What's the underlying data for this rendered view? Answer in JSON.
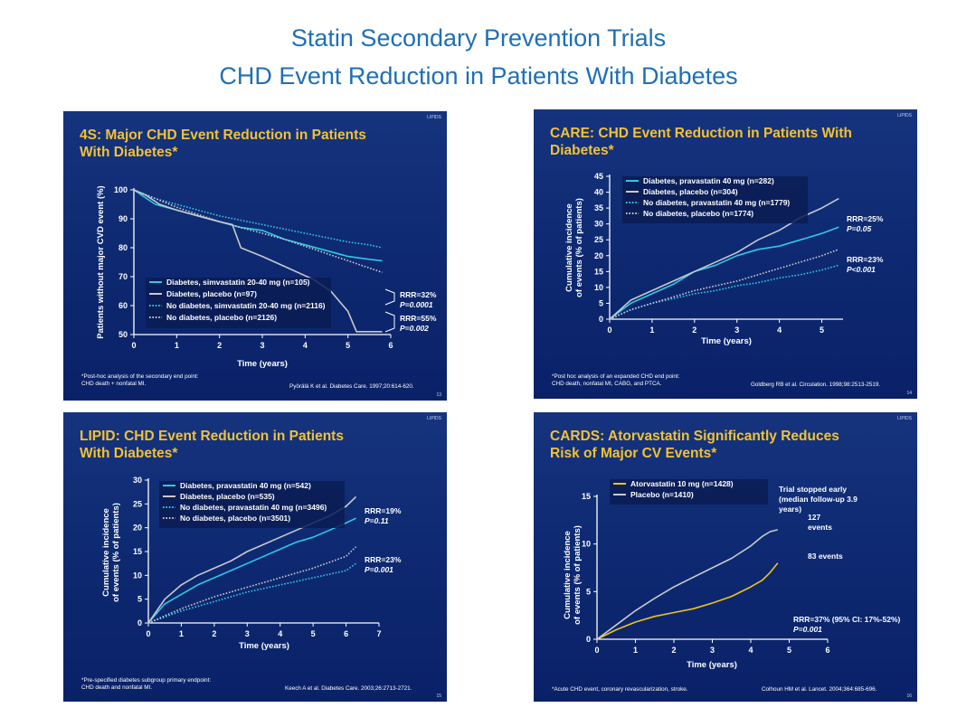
{
  "title_line1": "Statin Secondary Prevention Trials",
  "title_line2": "CHD Event Reduction in Patients With Diabetes",
  "colors": {
    "cyan": "#2ec9e6",
    "gray": "#c9c9c9",
    "yellow": "#f0c419",
    "panel_title": "#f1c232"
  },
  "chart_data": [
    {
      "type": "line",
      "title": "4S: Major CHD Event Reduction in Patients With Diabetes*",
      "xlabel": "Time (years)",
      "ylabel": "Patients without major CVD event (%)",
      "xlim": [
        0,
        6
      ],
      "ylim": [
        50,
        100
      ],
      "xticks": [
        0,
        1,
        2,
        3,
        4,
        5,
        6
      ],
      "yticks": [
        50,
        60,
        70,
        80,
        90,
        100
      ],
      "corner_label": "LIPIDS",
      "series": [
        {
          "name": "Diabetes, simvastatin 20-40 mg (n=105)",
          "color": "#2ec9e6",
          "dash": "solid",
          "x": [
            0,
            0.2,
            0.5,
            1.0,
            1.5,
            2.0,
            2.5,
            3.0,
            3.5,
            4.0,
            4.5,
            5.0,
            5.5,
            5.8
          ],
          "y": [
            100,
            98,
            95,
            93,
            91,
            89,
            87,
            86,
            83,
            81,
            79,
            77,
            76,
            75.5
          ]
        },
        {
          "name": "Diabetes, placebo (n=97)",
          "color": "#c9c9c9",
          "dash": "solid",
          "x": [
            0,
            0.3,
            0.6,
            1.0,
            1.5,
            2.0,
            2.3,
            2.5,
            3.0,
            3.3,
            3.6,
            3.9,
            4.2,
            4.6,
            5.0,
            5.2,
            5.5,
            5.8
          ],
          "y": [
            100,
            98,
            95,
            93,
            91,
            89,
            88,
            80,
            77,
            75,
            73,
            71,
            69,
            65,
            58,
            51,
            51,
            51
          ]
        },
        {
          "name": "No diabetes, simvastatin 20-40 mg (n=2116)",
          "color": "#2ec9e6",
          "dash": "dot",
          "x": [
            0,
            0.5,
            1.0,
            1.5,
            2.0,
            2.5,
            3.0,
            3.5,
            4.0,
            4.5,
            5.0,
            5.5,
            5.8
          ],
          "y": [
            100,
            97,
            95,
            93,
            91,
            89.5,
            88,
            86.5,
            85,
            83.5,
            82,
            81,
            80
          ]
        },
        {
          "name": "No diabetes, placebo (n=2126)",
          "color": "#c9c9c9",
          "dash": "dot",
          "x": [
            0,
            0.5,
            1.0,
            1.5,
            2.0,
            2.5,
            3.0,
            3.5,
            4.0,
            4.5,
            5.0,
            5.5,
            5.8
          ],
          "y": [
            100,
            97,
            94,
            91.5,
            89,
            87,
            85,
            83,
            80.5,
            78,
            75.5,
            73,
            71.5
          ]
        }
      ],
      "annotations": [
        {
          "lines": [
            "RRR=32%",
            "P=0.0001"
          ]
        },
        {
          "lines": [
            "RRR=55%",
            "P=0.002"
          ]
        }
      ],
      "footnote": [
        "*Post-hoc analysis of the secondary end point:",
        "CHD death + nonfatal MI."
      ],
      "reference": "Pyörälä K et al. Diabetes Care. 1997;20:614-620.",
      "page": "13"
    },
    {
      "type": "line",
      "title": "CARE: CHD Event Reduction in Patients With Diabetes*",
      "xlabel": "Time (years)",
      "ylabel": "Cumulative incidence of events (% of patients)",
      "xlim": [
        0,
        5.5
      ],
      "ylim": [
        0,
        45
      ],
      "xticks": [
        0,
        1,
        2,
        3,
        4,
        5
      ],
      "yticks": [
        0,
        5,
        10,
        15,
        20,
        25,
        30,
        35,
        40,
        45
      ],
      "corner_label": "LIPIDS",
      "series": [
        {
          "name": "Diabetes, pravastatin 40 mg (n=282)",
          "color": "#2ec9e6",
          "dash": "solid",
          "x": [
            0,
            0.5,
            1.0,
            1.5,
            2.0,
            2.5,
            3.0,
            3.5,
            4.0,
            4.5,
            5.0,
            5.4
          ],
          "y": [
            0,
            5,
            8,
            11,
            15,
            17,
            20,
            22,
            23,
            25,
            27,
            29
          ]
        },
        {
          "name": "Diabetes, placebo (n=304)",
          "color": "#c9c9c9",
          "dash": "solid",
          "x": [
            0,
            0.5,
            1.0,
            1.5,
            2.0,
            2.5,
            3.0,
            3.5,
            4.0,
            4.5,
            5.0,
            5.4
          ],
          "y": [
            0,
            6,
            9,
            12,
            15,
            18,
            21,
            25,
            28,
            32,
            35,
            38
          ]
        },
        {
          "name": "No diabetes, pravastatin 40 mg (n=1779)",
          "color": "#2ec9e6",
          "dash": "dot",
          "x": [
            0,
            0.5,
            1.0,
            1.5,
            2.0,
            2.5,
            3.0,
            3.5,
            4.0,
            4.5,
            5.0,
            5.4
          ],
          "y": [
            0,
            3,
            5,
            6.5,
            8,
            9,
            10.5,
            11.5,
            13,
            14,
            15.5,
            17
          ]
        },
        {
          "name": "No diabetes, placebo (n=1774)",
          "color": "#c9c9c9",
          "dash": "dot",
          "x": [
            0,
            0.5,
            1.0,
            1.5,
            2.0,
            2.5,
            3.0,
            3.5,
            4.0,
            4.5,
            5.0,
            5.4
          ],
          "y": [
            0,
            3,
            5,
            7,
            9,
            10.5,
            12,
            14,
            16,
            18,
            20,
            22
          ]
        }
      ],
      "annotations": [
        {
          "lines": [
            "RRR=25%",
            "P=0.05"
          ]
        },
        {
          "lines": [
            "RRR=23%",
            "P<0.001"
          ]
        }
      ],
      "footnote": [
        "*Post hoc analysis of an expanded CHD end point:",
        "CHD death, nonfatal MI, CABG, and PTCA."
      ],
      "reference": "Goldberg RB et al. Circulation. 1998;98:2513-2519.",
      "page": "14"
    },
    {
      "type": "line",
      "title": "LIPID: CHD Event Reduction in Patients With Diabetes*",
      "xlabel": "Time (years)",
      "ylabel": "Cumulative incidence of events (% of patients)",
      "xlim": [
        0,
        7
      ],
      "ylim": [
        0,
        30
      ],
      "xticks": [
        0,
        1,
        2,
        3,
        4,
        5,
        6,
        7
      ],
      "yticks": [
        0,
        5,
        10,
        15,
        20,
        25,
        30
      ],
      "corner_label": "LIPIDS",
      "series": [
        {
          "name": "Diabetes, pravastatin 40 mg (n=542)",
          "color": "#2ec9e6",
          "dash": "solid",
          "x": [
            0,
            0.5,
            1.0,
            1.5,
            2.0,
            2.5,
            3.0,
            3.5,
            4.0,
            4.5,
            5.0,
            5.5,
            6.0,
            6.3
          ],
          "y": [
            0,
            4,
            6,
            8,
            9.5,
            11,
            12.5,
            14,
            15.5,
            17,
            18,
            19.5,
            21,
            22
          ]
        },
        {
          "name": "Diabetes, placebo (n=535)",
          "color": "#c9c9c9",
          "dash": "solid",
          "x": [
            0,
            0.5,
            1.0,
            1.5,
            2.0,
            2.5,
            3.0,
            3.5,
            4.0,
            4.5,
            5.0,
            5.5,
            6.0,
            6.3
          ],
          "y": [
            0,
            5,
            8,
            10,
            11.5,
            13,
            15,
            16.5,
            18,
            19.5,
            21,
            22.5,
            24.5,
            26.5
          ]
        },
        {
          "name": "No diabetes, pravastatin 40 mg (n=3496)",
          "color": "#2ec9e6",
          "dash": "dot",
          "x": [
            0,
            1,
            2,
            3,
            4,
            5,
            6,
            6.3
          ],
          "y": [
            0,
            2.5,
            4.5,
            6.5,
            8,
            9.5,
            11,
            12.5
          ]
        },
        {
          "name": "No diabetes, placebo (n=3501)",
          "color": "#c9c9c9",
          "dash": "dot",
          "x": [
            0,
            1,
            2,
            3,
            4,
            5,
            6,
            6.3
          ],
          "y": [
            0,
            3,
            5.5,
            7.5,
            9.5,
            11.5,
            14,
            16
          ]
        }
      ],
      "annotations": [
        {
          "lines": [
            "RRR=19%",
            "P=0.11"
          ]
        },
        {
          "lines": [
            "RRR=23%",
            "P=0.001"
          ]
        }
      ],
      "footnote": [
        "*Pre-specified diabetes subgroup primary endpoint:",
        "CHD death and nonfatal MI."
      ],
      "reference": "Keech A et al. Diabetes Care. 2003;26:2713-2721.",
      "page": "15"
    },
    {
      "type": "line",
      "title": "CARDS: Atorvastatin Significantly Reduces Risk of Major CV Events*",
      "xlabel": "Time (years)",
      "ylabel": "Cumulative incidence of events (% of patients)",
      "xlim": [
        0,
        6
      ],
      "ylim": [
        0,
        15
      ],
      "xticks": [
        0,
        1,
        2,
        3,
        4,
        5,
        6
      ],
      "yticks": [
        0,
        5,
        10,
        15
      ],
      "corner_label": "LIPIDS",
      "series": [
        {
          "name": "Atorvastatin 10 mg (n=1428)",
          "color": "#f0c419",
          "dash": "solid",
          "x": [
            0,
            0.5,
            1.0,
            1.5,
            2.0,
            2.5,
            3.0,
            3.5,
            4.0,
            4.3,
            4.5,
            4.7
          ],
          "y": [
            0,
            1,
            1.8,
            2.4,
            2.8,
            3.2,
            3.8,
            4.5,
            5.5,
            6.2,
            7,
            8
          ]
        },
        {
          "name": "Placebo (n=1410)",
          "color": "#c9c9c9",
          "dash": "solid",
          "x": [
            0,
            0.5,
            1.0,
            1.5,
            2.0,
            2.5,
            3.0,
            3.5,
            4.0,
            4.3,
            4.5,
            4.7
          ],
          "y": [
            0,
            1.5,
            3,
            4.3,
            5.5,
            6.5,
            7.5,
            8.5,
            9.8,
            10.8,
            11.3,
            11.5
          ]
        }
      ],
      "annotations": [
        {
          "lines": [
            "Trial stopped early",
            "(median follow-up 3.9",
            "years)"
          ]
        },
        {
          "lines": [
            "127",
            "events"
          ]
        },
        {
          "lines": [
            "83 events"
          ]
        },
        {
          "lines": [
            "RRR=37% (95% CI: 17%-52%)",
            "P=0.001"
          ]
        }
      ],
      "footnote": [
        "*Acute CHD event, coronary revascularization, stroke."
      ],
      "reference": "Colhoun HM et al. Lancet. 2004;364:685-696.",
      "page": "16"
    }
  ]
}
